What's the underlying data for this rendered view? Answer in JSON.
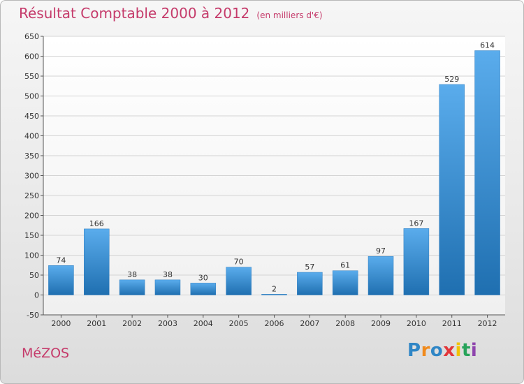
{
  "title": "Résultat Comptable 2000 à 2012",
  "subtitle": "(en milliers d'€)",
  "town": "MéZOS",
  "logo": {
    "text": "Proxiti",
    "letters": [
      "P",
      "r",
      "o",
      "x",
      "i",
      "t",
      "i"
    ],
    "colors": [
      "#2f86c6",
      "#f08a1c",
      "#2f86c6",
      "#e2363a",
      "#f2c200",
      "#27a35a",
      "#8e44ad"
    ]
  },
  "colors": {
    "accent": "#c53a6a",
    "bar_light": "#5aacec",
    "bar_dark": "#1f6fb0"
  },
  "chart_data": {
    "type": "bar",
    "categories": [
      "2000",
      "2001",
      "2002",
      "2003",
      "2004",
      "2005",
      "2006",
      "2007",
      "2008",
      "2009",
      "2010",
      "2011",
      "2012"
    ],
    "values": [
      74,
      166,
      38,
      38,
      30,
      70,
      2,
      57,
      61,
      97,
      167,
      529,
      614
    ],
    "value_labels": [
      "74",
      "166",
      "38",
      "38",
      "30",
      "70",
      "2",
      "57",
      "61",
      "97",
      "167",
      "529",
      "614"
    ],
    "ylim": [
      -50,
      650
    ],
    "yticks": [
      -50,
      0,
      50,
      100,
      150,
      200,
      250,
      300,
      350,
      400,
      450,
      500,
      550,
      600,
      650
    ],
    "grid": true
  }
}
